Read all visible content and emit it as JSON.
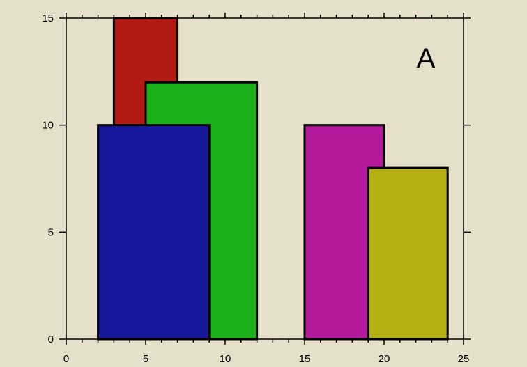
{
  "chart_data": {
    "type": "bar",
    "panel_label": "A",
    "xlim": [
      0,
      25
    ],
    "ylim": [
      0,
      15
    ],
    "x_major_ticks": [
      0,
      5,
      10,
      15,
      20,
      25
    ],
    "x_major_tick_labels": [
      "0",
      "5",
      "10",
      "15",
      "20",
      "25"
    ],
    "x_minor_ticks": [
      1,
      2,
      3,
      4,
      6,
      7,
      8,
      9,
      11,
      12,
      13,
      14,
      16,
      17,
      18,
      19,
      21,
      22,
      23,
      24
    ],
    "y_major_ticks": [
      0,
      5,
      10,
      15
    ],
    "y_major_tick_labels": [
      "0",
      "5",
      "10",
      "15"
    ],
    "grid": false,
    "bars": [
      {
        "color": "#b41a14",
        "x0": 3,
        "x1": 7,
        "height": 15
      },
      {
        "color": "#19b019",
        "x0": 5,
        "x1": 12,
        "height": 12
      },
      {
        "color": "#17179a",
        "x0": 2,
        "x1": 9,
        "height": 10
      },
      {
        "color": "#b61a9c",
        "x0": 15,
        "x1": 20,
        "height": 10
      },
      {
        "color": "#b4b014",
        "x0": 19,
        "x1": 24,
        "height": 8
      }
    ]
  }
}
